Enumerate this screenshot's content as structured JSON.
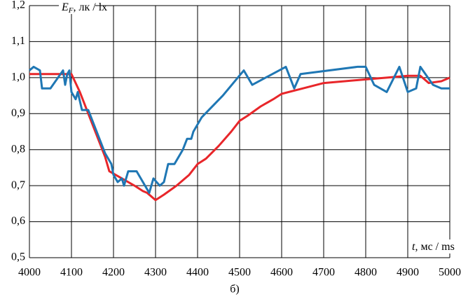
{
  "chart_data": {
    "type": "line",
    "x_label": {
      "symbol": "t",
      "unit": ", мс / ms"
    },
    "y_label": {
      "symbol": "E",
      "subscript": "F",
      "unit": ", лк / lx"
    },
    "caption": "б)",
    "xlim": [
      4000,
      5000
    ],
    "xticks": [
      4000,
      4100,
      4200,
      4300,
      4400,
      4500,
      4600,
      4700,
      4800,
      4900,
      5000
    ],
    "ylim": [
      0.5,
      1.2
    ],
    "yticks": [
      {
        "value": 0.5,
        "label": "0,5"
      },
      {
        "value": 0.6,
        "label": "0,6"
      },
      {
        "value": 0.7,
        "label": "0,7"
      },
      {
        "value": 0.8,
        "label": "0,8"
      },
      {
        "value": 0.9,
        "label": "0,9"
      },
      {
        "value": 1.0,
        "label": "1,0"
      },
      {
        "value": 1.1,
        "label": "1,1"
      },
      {
        "value": 1.2,
        "label": "1,2"
      }
    ],
    "grid": true,
    "series": [
      {
        "color": "#e8262a",
        "x": [
          4000,
          4050,
          4100,
          4120,
          4140,
          4160,
          4180,
          4190,
          4220,
          4250,
          4270,
          4280,
          4290,
          4300,
          4320,
          4350,
          4380,
          4400,
          4420,
          4450,
          4480,
          4500,
          4520,
          4550,
          4580,
          4600,
          4650,
          4700,
          4750,
          4800,
          4850,
          4900,
          4930,
          4950,
          4980,
          5000
        ],
        "values": [
          1.01,
          1.01,
          1.01,
          0.96,
          0.9,
          0.84,
          0.78,
          0.74,
          0.72,
          0.7,
          0.685,
          0.68,
          0.67,
          0.66,
          0.675,
          0.7,
          0.73,
          0.76,
          0.775,
          0.81,
          0.85,
          0.88,
          0.895,
          0.92,
          0.94,
          0.955,
          0.97,
          0.985,
          0.99,
          0.995,
          1.0,
          1.005,
          1.005,
          0.985,
          0.99,
          1.0
        ]
      },
      {
        "color": "#1f77b4",
        "x": [
          4000,
          4010,
          4025,
          4030,
          4050,
          4080,
          4085,
          4090,
          4095,
          4100,
          4110,
          4115,
          4125,
          4140,
          4160,
          4180,
          4195,
          4200,
          4210,
          4220,
          4225,
          4235,
          4255,
          4275,
          4285,
          4295,
          4310,
          4320,
          4330,
          4345,
          4365,
          4375,
          4385,
          4390,
          4410,
          4460,
          4510,
          4530,
          4610,
          4630,
          4645,
          4780,
          4800,
          4820,
          4850,
          4880,
          4900,
          4920,
          4930,
          4960,
          4980,
          5000
        ],
        "values": [
          1.02,
          1.03,
          1.02,
          0.97,
          0.97,
          1.02,
          0.98,
          1.01,
          1.02,
          0.96,
          0.94,
          0.96,
          0.91,
          0.91,
          0.85,
          0.79,
          0.76,
          0.73,
          0.71,
          0.72,
          0.7,
          0.74,
          0.74,
          0.7,
          0.68,
          0.72,
          0.7,
          0.71,
          0.76,
          0.76,
          0.8,
          0.83,
          0.83,
          0.85,
          0.89,
          0.95,
          1.02,
          0.98,
          1.03,
          0.97,
          1.01,
          1.03,
          1.03,
          0.98,
          0.96,
          1.03,
          0.96,
          0.97,
          1.03,
          0.98,
          0.97,
          0.97
        ]
      }
    ]
  }
}
